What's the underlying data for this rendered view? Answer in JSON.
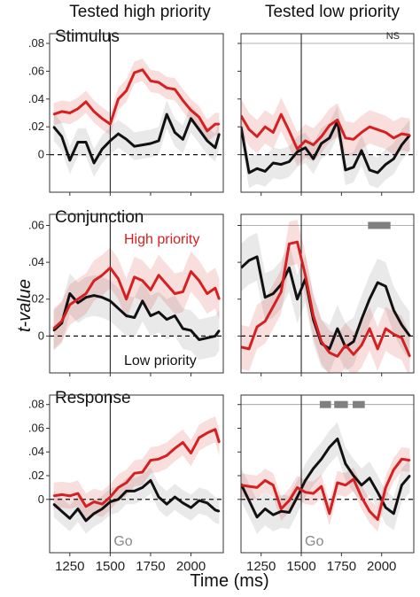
{
  "column_titles": [
    "Tested high priority",
    "Tested low priority"
  ],
  "row_titles": [
    "Stimulus",
    "Conjunction",
    "Response"
  ],
  "annotations": {
    "high_priority": "High priority",
    "low_priority": "Low priority",
    "ns": "NS",
    "go": "Go"
  },
  "xlabel": "Time (ms)",
  "ylabel": "t-value",
  "colors": {
    "high": "#d42020",
    "low": "#111111",
    "sig": "#808080"
  },
  "chart_data": [
    {
      "type": "line",
      "row": "Stimulus",
      "column": "Tested high priority",
      "x": [
        1150,
        1200,
        1250,
        1300,
        1350,
        1400,
        1450,
        1500,
        1550,
        1600,
        1650,
        1700,
        1750,
        1800,
        1850,
        1900,
        1950,
        2000,
        2050,
        2100,
        2150,
        2175
      ],
      "series": [
        {
          "name": "High priority",
          "values": [
            0.029,
            0.031,
            0.03,
            0.033,
            0.038,
            0.031,
            0.026,
            0.022,
            0.04,
            0.046,
            0.059,
            0.061,
            0.053,
            0.052,
            0.048,
            0.047,
            0.039,
            0.032,
            0.027,
            0.017,
            0.022,
            0.022
          ],
          "ci": 0.008
        },
        {
          "name": "Low priority",
          "values": [
            0.02,
            0.013,
            -0.004,
            0.009,
            0.009,
            -0.006,
            0.004,
            0.01,
            0.015,
            0.011,
            0.006,
            0.007,
            0.008,
            0.01,
            0.029,
            0.016,
            0.011,
            0.026,
            0.018,
            0.01,
            0.005,
            0.015
          ],
          "ci": 0.01
        }
      ],
      "xlim": [
        1125,
        2200
      ],
      "ylim": [
        -0.027,
        0.087
      ],
      "xticks": [
        1250,
        1500,
        1750,
        2000
      ],
      "yticks": [
        0,
        0.02,
        0.04,
        0.06,
        0.08
      ],
      "ytick_labels": [
        "0",
        ".02",
        ".04",
        ".06",
        ".08"
      ],
      "go_line": 1500
    },
    {
      "type": "line",
      "row": "Stimulus",
      "column": "Tested low priority",
      "x": [
        1125,
        1175,
        1225,
        1275,
        1325,
        1375,
        1425,
        1475,
        1525,
        1575,
        1625,
        1675,
        1725,
        1775,
        1825,
        1875,
        1925,
        1975,
        2025,
        2075,
        2125,
        2175
      ],
      "series": [
        {
          "name": "High priority",
          "values": [
            0.028,
            0.018,
            0.013,
            0.02,
            0.016,
            0.029,
            0.017,
            0.004,
            0.01,
            0.007,
            0.013,
            0.021,
            0.025,
            0.012,
            0.011,
            0.016,
            0.02,
            0.018,
            0.016,
            0.012,
            0.015,
            0.014
          ],
          "ci": 0.012
        },
        {
          "name": "Low priority",
          "values": [
            0.02,
            -0.013,
            -0.01,
            -0.012,
            -0.006,
            -0.007,
            -0.005,
            0.002,
            0.005,
            -0.003,
            0.008,
            0.012,
            0.024,
            -0.011,
            -0.009,
            0.003,
            -0.011,
            -0.013,
            -0.007,
            -0.003,
            0.007,
            0.014
          ],
          "ci": 0.011
        }
      ],
      "xlim": [
        1125,
        2200
      ],
      "ylim": [
        -0.027,
        0.087
      ],
      "xticks": [
        1250,
        1500,
        1750,
        2000
      ],
      "yticks": [
        0,
        0.02,
        0.04,
        0.06,
        0.08
      ],
      "ytick_labels": [
        "0",
        ".02",
        ".04",
        ".06",
        ".08"
      ],
      "go_line": 1500,
      "significance_line": 0.08,
      "significance_label": "NS"
    },
    {
      "type": "line",
      "row": "Conjunction",
      "column": "Tested high priority",
      "x": [
        1150,
        1200,
        1250,
        1300,
        1350,
        1400,
        1450,
        1500,
        1550,
        1600,
        1650,
        1700,
        1750,
        1800,
        1850,
        1900,
        1950,
        2000,
        2050,
        2100,
        2150,
        2175
      ],
      "series": [
        {
          "name": "High priority",
          "values": [
            0.004,
            0.008,
            0.017,
            0.02,
            0.023,
            0.03,
            0.033,
            0.037,
            0.031,
            0.02,
            0.032,
            0.03,
            0.025,
            0.033,
            0.028,
            0.023,
            0.024,
            0.035,
            0.03,
            0.023,
            0.026,
            0.02
          ],
          "ci": 0.011
        },
        {
          "name": "Low priority",
          "values": [
            0.003,
            0.007,
            0.023,
            0.018,
            0.021,
            0.022,
            0.021,
            0.019,
            0.015,
            0.011,
            0.01,
            0.019,
            0.011,
            0.013,
            0.009,
            0.011,
            0.004,
            0.003,
            -0.002,
            -0.001,
            0.0,
            0.003
          ],
          "ci": 0.011
        }
      ],
      "xlim": [
        1125,
        2200
      ],
      "ylim": [
        -0.02,
        0.066
      ],
      "xticks": [
        1250,
        1500,
        1750,
        2000
      ],
      "yticks": [
        0,
        0.02,
        0.04,
        0.06
      ],
      "ytick_labels": [
        "0",
        ".02",
        ".04",
        ".06"
      ],
      "go_line": 1500
    },
    {
      "type": "line",
      "row": "Conjunction",
      "column": "Tested low priority",
      "x": [
        1125,
        1175,
        1225,
        1275,
        1325,
        1375,
        1425,
        1475,
        1525,
        1575,
        1625,
        1675,
        1725,
        1775,
        1825,
        1875,
        1925,
        1975,
        2025,
        2075,
        2125,
        2175
      ],
      "series": [
        {
          "name": "High priority",
          "values": [
            -0.006,
            -0.007,
            0.005,
            0.008,
            0.016,
            0.024,
            0.05,
            0.051,
            0.033,
            0.011,
            -0.003,
            -0.009,
            -0.011,
            -0.005,
            -0.01,
            -0.005,
            0.004,
            -0.007,
            0.004,
            0.001,
            -0.001,
            -0.011
          ],
          "ci": 0.012
        },
        {
          "name": "Low priority",
          "values": [
            0.037,
            0.041,
            0.043,
            0.021,
            0.023,
            0.028,
            0.037,
            0.02,
            0.031,
            0.009,
            -0.004,
            -0.007,
            0.004,
            -0.006,
            -0.003,
            0.009,
            0.02,
            0.029,
            0.027,
            0.014,
            0.006,
            0.0
          ],
          "ci": 0.013
        }
      ],
      "xlim": [
        1125,
        2200
      ],
      "ylim": [
        -0.02,
        0.066
      ],
      "xticks": [
        1250,
        1500,
        1750,
        2000
      ],
      "yticks": [
        0,
        0.02,
        0.04,
        0.06
      ],
      "ytick_labels": [
        "0",
        ".02",
        ".04",
        ".06"
      ],
      "go_line": 1500,
      "significance_line": 0.06,
      "significant_spans": [
        [
          1915,
          2055
        ]
      ]
    },
    {
      "type": "line",
      "row": "Response",
      "column": "Tested high priority",
      "x": [
        1150,
        1200,
        1250,
        1300,
        1350,
        1400,
        1450,
        1500,
        1550,
        1600,
        1650,
        1700,
        1750,
        1800,
        1850,
        1900,
        1950,
        2000,
        2050,
        2100,
        2150,
        2175
      ],
      "series": [
        {
          "name": "High priority",
          "values": [
            0.003,
            0.004,
            0.003,
            0.005,
            -0.006,
            -0.002,
            -0.004,
            0.002,
            0.01,
            0.014,
            0.022,
            0.023,
            0.033,
            0.034,
            0.037,
            0.043,
            0.048,
            0.039,
            0.052,
            0.056,
            0.059,
            0.048
          ],
          "ci": 0.011
        },
        {
          "name": "Low priority",
          "values": [
            -0.004,
            -0.01,
            -0.016,
            -0.008,
            -0.018,
            -0.012,
            -0.008,
            -0.002,
            0.0,
            0.007,
            0.007,
            0.01,
            0.016,
            0.002,
            -0.004,
            0.002,
            -0.003,
            -0.007,
            -0.001,
            -0.003,
            -0.009,
            -0.01
          ],
          "ci": 0.011
        }
      ],
      "xlim": [
        1125,
        2200
      ],
      "ylim": [
        -0.045,
        0.088
      ],
      "xticks": [
        1250,
        1500,
        1750,
        2000
      ],
      "yticks": [
        0,
        0.02,
        0.04,
        0.06,
        0.08
      ],
      "ytick_labels": [
        "0",
        ".02",
        ".04",
        ".06",
        ".08"
      ],
      "go_line": 1500,
      "go_label": "Go"
    },
    {
      "type": "line",
      "row": "Response",
      "column": "Tested low priority",
      "x": [
        1125,
        1175,
        1225,
        1275,
        1325,
        1375,
        1425,
        1475,
        1525,
        1575,
        1625,
        1675,
        1725,
        1775,
        1825,
        1875,
        1925,
        1975,
        2025,
        2075,
        2125,
        2175
      ],
      "series": [
        {
          "name": "High priority",
          "values": [
            0.012,
            0.011,
            0.01,
            0.016,
            0.012,
            -0.008,
            -0.001,
            0.01,
            0.006,
            0.005,
            0.011,
            -0.012,
            0.014,
            0.012,
            0.017,
            0.002,
            -0.01,
            -0.017,
            0.01,
            0.025,
            0.034,
            0.033
          ],
          "ci": 0.01
        },
        {
          "name": "Low priority",
          "values": [
            0.013,
            -0.001,
            -0.015,
            -0.008,
            -0.013,
            -0.01,
            -0.011,
            0.002,
            0.016,
            0.026,
            0.034,
            0.044,
            0.051,
            0.03,
            0.02,
            0.012,
            0.018,
            0.006,
            -0.007,
            -0.012,
            0.012,
            0.02
          ],
          "ci": 0.014
        }
      ],
      "xlim": [
        1125,
        2200
      ],
      "ylim": [
        -0.045,
        0.088
      ],
      "xticks": [
        1250,
        1500,
        1750,
        2000
      ],
      "yticks": [
        0,
        0.02,
        0.04,
        0.06,
        0.08
      ],
      "ytick_labels": [
        "0",
        ".02",
        ".04",
        ".06",
        ".08"
      ],
      "go_line": 1500,
      "go_label": "Go",
      "significance_line": 0.08,
      "significant_spans": [
        [
          1615,
          1685
        ],
        [
          1705,
          1790
        ],
        [
          1820,
          1895
        ]
      ]
    }
  ]
}
